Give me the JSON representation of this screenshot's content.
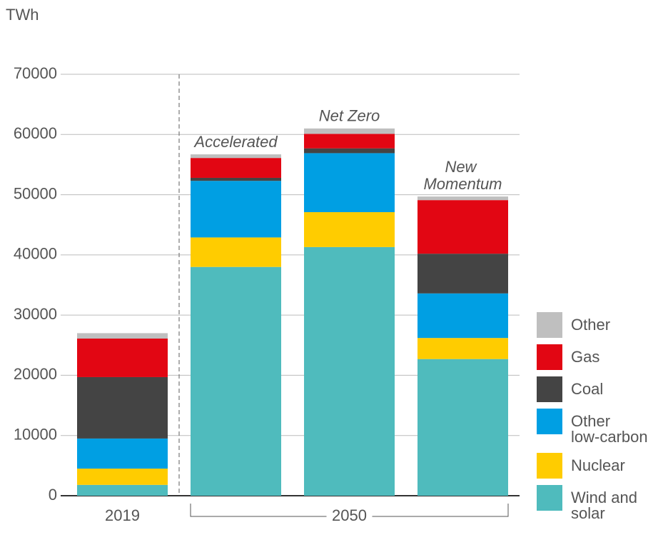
{
  "chart_data": {
    "type": "stacked_bar",
    "y_label": "TWh",
    "categories": [
      null,
      "Accelerated",
      "Net Zero",
      "New Momentum"
    ],
    "groups": [
      {
        "label": "2019",
        "size": 1
      },
      {
        "label": "2050",
        "size": 3
      }
    ],
    "series": [
      {
        "name": "Wind and solar",
        "color": "#4fbbbd",
        "values": [
          1800,
          38000,
          41300,
          22700
        ]
      },
      {
        "name": "Nuclear",
        "color": "#ffcc00",
        "values": [
          2700,
          4900,
          5800,
          3500
        ]
      },
      {
        "name": "Other low-carbon",
        "color": "#009fe3",
        "values": [
          5000,
          9400,
          9800,
          7400
        ]
      },
      {
        "name": "Coal",
        "color": "#444444",
        "values": [
          10200,
          500,
          800,
          6600
        ]
      },
      {
        "name": "Gas",
        "color": "#e20613",
        "values": [
          6400,
          3300,
          2400,
          8900
        ]
      },
      {
        "name": "Other",
        "color": "#bfbfbf",
        "values": [
          900,
          600,
          900,
          600
        ]
      }
    ],
    "ylim": [
      0,
      70000
    ],
    "yticks": [
      0,
      10000,
      20000,
      30000,
      40000,
      50000,
      60000,
      70000
    ],
    "grid": true
  }
}
